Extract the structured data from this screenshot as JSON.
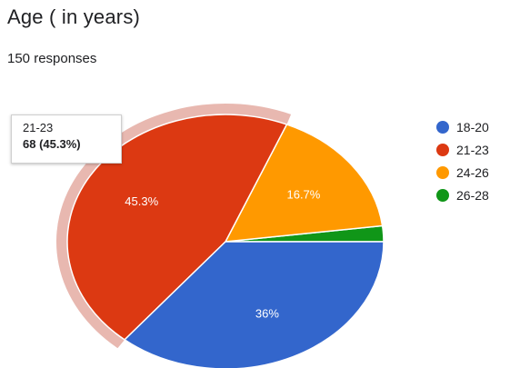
{
  "header": {
    "title": "Age ( in years)",
    "responses": "150 responses"
  },
  "colors": {
    "blue": "#3366cc",
    "red": "#dc3912",
    "orange": "#ff9900",
    "green": "#109618",
    "highlight": "#e8b8b0"
  },
  "tooltip": {
    "category": "21-23",
    "value": "68 (45.3%)"
  },
  "chart_data": {
    "type": "pie",
    "title": "Age ( in years)",
    "subtitle": "150 responses",
    "legend_position": "right",
    "slices": [
      {
        "label": "18-20",
        "count": 54,
        "percent": 36.0,
        "display": "36%",
        "color": "#3366cc"
      },
      {
        "label": "21-23",
        "count": 68,
        "percent": 45.3,
        "display": "45.3%",
        "color": "#dc3912"
      },
      {
        "label": "24-26",
        "count": 25,
        "percent": 16.7,
        "display": "16.7%",
        "color": "#ff9900"
      },
      {
        "label": "26-28",
        "count": 3,
        "percent": 2.0,
        "display": "",
        "color": "#109618"
      }
    ],
    "highlighted": "21-23"
  }
}
